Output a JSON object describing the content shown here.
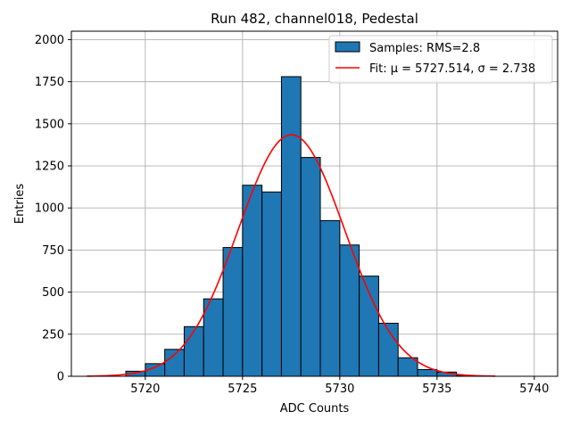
{
  "chart_data": {
    "type": "bar",
    "title": "Run 482, channel018, Pedestal",
    "xlabel": "ADC Counts",
    "ylabel": "Entries",
    "xlim": [
      5716.2,
      5741.2
    ],
    "ylim": [
      0,
      2050
    ],
    "xticks": [
      5720,
      5725,
      5730,
      5735,
      5740
    ],
    "yticks": [
      0,
      250,
      500,
      750,
      1000,
      1250,
      1500,
      1750,
      2000
    ],
    "grid": true,
    "legend_position": "top-right",
    "colors": {
      "bars": "#1f77b4",
      "bar_edge": "#000000",
      "fit": "#ff0000",
      "grid": "#b0b0b0"
    },
    "series": [
      {
        "name": "Samples: RMS=2.8",
        "type": "histogram",
        "bin_width": 1,
        "bins": [
          {
            "left": 5719,
            "count": 30
          },
          {
            "left": 5720,
            "count": 75
          },
          {
            "left": 5721,
            "count": 160
          },
          {
            "left": 5722,
            "count": 295
          },
          {
            "left": 5723,
            "count": 460
          },
          {
            "left": 5724,
            "count": 765
          },
          {
            "left": 5725,
            "count": 1135
          },
          {
            "left": 5726,
            "count": 1095
          },
          {
            "left": 5727,
            "count": 1780
          },
          {
            "left": 5728,
            "count": 1300
          },
          {
            "left": 5729,
            "count": 925
          },
          {
            "left": 5730,
            "count": 780
          },
          {
            "left": 5731,
            "count": 595
          },
          {
            "left": 5732,
            "count": 315
          },
          {
            "left": 5733,
            "count": 110
          },
          {
            "left": 5734,
            "count": 40
          },
          {
            "left": 5735,
            "count": 25
          },
          {
            "left": 5736,
            "count": 5
          }
        ]
      },
      {
        "name": "Fit: μ = 5727.514, σ = 2.738",
        "type": "gaussian_fit",
        "mu": 5727.514,
        "sigma": 2.738,
        "peak": 1435,
        "x_range": [
          5717,
          5738
        ]
      }
    ]
  }
}
